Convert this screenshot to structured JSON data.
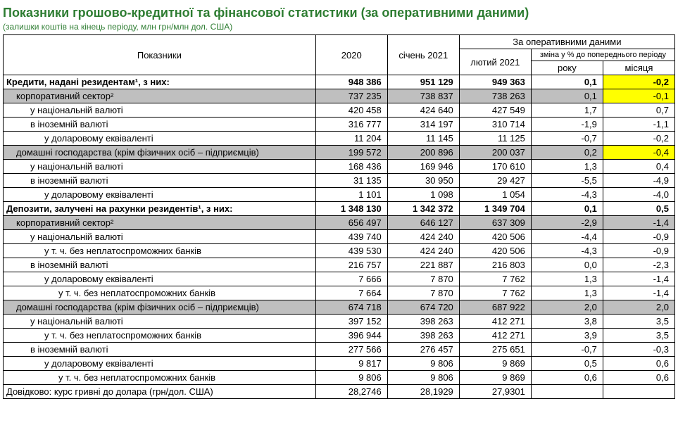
{
  "title": "Показники грошово-кредитної та фінансової статистики (за оперативними даними)",
  "subtitle": "(залишки коштів на кінець періоду, млн грн/млн дол. США)",
  "headers": {
    "indicators": "Показники",
    "y2020": "2020",
    "jan2021": "січень 2021",
    "operGroup": "За оперативними даними",
    "feb2021": "лютий 2021",
    "pctGroup": "зміна у % до попереднього періоду",
    "year": "року",
    "month": "місяця"
  },
  "rows": [
    {
      "label": "Кредити, надані резидентам¹, з них:",
      "indent": 0,
      "bold": true,
      "v": [
        "948 386",
        "951 129",
        "949 363",
        "0,1",
        "-0,2"
      ],
      "hl": [
        false,
        false,
        false,
        false,
        true
      ]
    },
    {
      "label": "корпоративний сектор²",
      "indent": 1,
      "shade": true,
      "v": [
        "737 235",
        "738 837",
        "738 263",
        "0,1",
        "-0,1"
      ],
      "hl": [
        false,
        false,
        false,
        false,
        true
      ]
    },
    {
      "label": "у національній валюті",
      "indent": 2,
      "v": [
        "420 458",
        "424 640",
        "427 549",
        "1,7",
        "0,7"
      ]
    },
    {
      "label": "в іноземній валюті",
      "indent": 2,
      "v": [
        "316 777",
        "314 197",
        "310 714",
        "-1,9",
        "-1,1"
      ]
    },
    {
      "label": "у доларовому еквіваленті",
      "indent": 3,
      "v": [
        "11 204",
        "11 145",
        "11 125",
        "-0,7",
        "-0,2"
      ]
    },
    {
      "label": "домашні господарства (крім фізичних осіб – підприємців)",
      "indent": 1,
      "shade": true,
      "v": [
        "199 572",
        "200 896",
        "200 037",
        "0,2",
        "-0,4"
      ],
      "hl": [
        false,
        false,
        false,
        false,
        true
      ]
    },
    {
      "label": "у національній валюті",
      "indent": 2,
      "v": [
        "168 436",
        "169 946",
        "170 610",
        "1,3",
        "0,4"
      ]
    },
    {
      "label": "в іноземній валюті",
      "indent": 2,
      "v": [
        "31 135",
        "30 950",
        "29 427",
        "-5,5",
        "-4,9"
      ]
    },
    {
      "label": "у доларовому еквіваленті",
      "indent": 3,
      "v": [
        "1 101",
        "1 098",
        "1 054",
        "-4,3",
        "-4,0"
      ]
    },
    {
      "label": "Депозити, залучені на рахунки резидентів¹, з них:",
      "indent": 0,
      "bold": true,
      "v": [
        "1 348 130",
        "1 342 372",
        "1 349 704",
        "0,1",
        "0,5"
      ]
    },
    {
      "label": "корпоративний сектор²",
      "indent": 1,
      "shade": true,
      "v": [
        "656 497",
        "646 127",
        "637 309",
        "-2,9",
        "-1,4"
      ]
    },
    {
      "label": "у національній валюті",
      "indent": 2,
      "v": [
        "439 740",
        "424 240",
        "420 506",
        "-4,4",
        "-0,9"
      ]
    },
    {
      "label": "у т. ч. без неплатоспроможних банків",
      "indent": 3,
      "v": [
        "439 530",
        "424 240",
        "420 506",
        "-4,3",
        "-0,9"
      ]
    },
    {
      "label": "в іноземній валюті",
      "indent": 2,
      "v": [
        "216 757",
        "221 887",
        "216 803",
        "0,0",
        "-2,3"
      ]
    },
    {
      "label": "у доларовому еквіваленті",
      "indent": 3,
      "v": [
        "7 666",
        "7 870",
        "7 762",
        "1,3",
        "-1,4"
      ]
    },
    {
      "label": "у т. ч. без неплатоспроможних банків",
      "indent": 4,
      "v": [
        "7 664",
        "7 870",
        "7 762",
        "1,3",
        "-1,4"
      ]
    },
    {
      "label": "домашні господарства (крім фізичних осіб – підприємців)",
      "indent": 1,
      "shade": true,
      "v": [
        "674 718",
        "674 720",
        "687 922",
        "2,0",
        "2,0"
      ]
    },
    {
      "label": "у національній валюті",
      "indent": 2,
      "v": [
        "397 152",
        "398 263",
        "412 271",
        "3,8",
        "3,5"
      ]
    },
    {
      "label": "у т. ч. без неплатоспроможних банків",
      "indent": 3,
      "v": [
        "396 944",
        "398 263",
        "412 271",
        "3,9",
        "3,5"
      ]
    },
    {
      "label": "в іноземній валюті",
      "indent": 2,
      "v": [
        "277 566",
        "276 457",
        "275 651",
        "-0,7",
        "-0,3"
      ]
    },
    {
      "label": "у доларовому еквіваленті",
      "indent": 3,
      "v": [
        "9 817",
        "9 806",
        "9 869",
        "0,5",
        "0,6"
      ]
    },
    {
      "label": "у т. ч. без неплатоспроможних банків",
      "indent": 4,
      "v": [
        "9 806",
        "9 806",
        "9 869",
        "0,6",
        "0,6"
      ]
    },
    {
      "label": "Довідково: курс гривні до долара (грн/дол. США)",
      "indent": 0,
      "v": [
        "28,2746",
        "28,1929",
        "27,9301",
        "",
        ""
      ]
    }
  ]
}
